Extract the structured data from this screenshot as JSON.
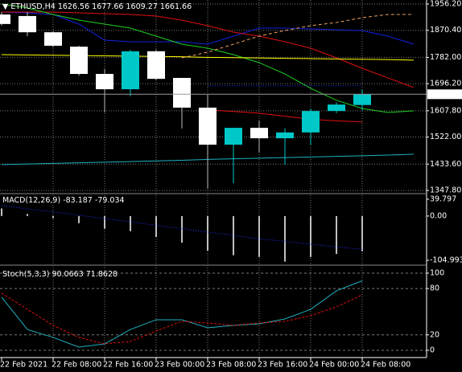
{
  "chart_data": {
    "type": "candlestick",
    "symbol": "ETHUSD,H4",
    "categories": [
      "22 Feb 2021",
      null,
      "22 Feb 08:00",
      null,
      "22 Feb 16:00",
      null,
      "23 Feb 00:00",
      null,
      "23 Feb 08:00",
      null,
      "23 Feb 16:00",
      null,
      "24 Feb 00:00",
      null,
      "24 Feb 08:00",
      null,
      null
    ],
    "open": [
      1922,
      1917,
      1864,
      1817,
      1728,
      1678,
      1802,
      1715,
      1618,
      1497,
      1552,
      1518,
      1537,
      1607,
      1626.56,
      null,
      null
    ],
    "high": [
      1930,
      1930,
      1868,
      1820,
      1744,
      1807,
      1807,
      1715,
      1660,
      1552,
      1576,
      1550,
      1615,
      1635,
      1677.66,
      null,
      null
    ],
    "low": [
      1886,
      1851,
      1815,
      1722,
      1602,
      1655,
      1707,
      1550,
      1353,
      1371,
      1471,
      1432,
      1497,
      1600,
      1609.27,
      null,
      null
    ],
    "close": [
      1891,
      1864,
      1820,
      1728,
      1678,
      1802,
      1712,
      1618,
      1497,
      1552,
      1518,
      1537,
      1607,
      1628,
      1661.66,
      null,
      null
    ],
    "up_color": "#00c8c8",
    "down_color": "#ffffff",
    "ylim": [
      1339.9,
      1969.3
    ],
    "yticks": [
      {
        "value": 1956.2,
        "label": "1956.20"
      },
      {
        "value": 1870.4,
        "label": "1870.40"
      },
      {
        "value": 1782,
        "label": "1782.00"
      },
      {
        "value": 1696.2,
        "label": "1696.20"
      },
      {
        "value": 1607.8,
        "label": "1607.80"
      },
      {
        "value": 1522,
        "label": "1522.00"
      },
      {
        "value": 1433.6,
        "label": "1433.60"
      },
      {
        "value": 1347.8,
        "label": "1347.80"
      }
    ],
    "grid": true,
    "overlays": [
      {
        "color": "#1020e0",
        "style": "solid",
        "values": [
          1930,
          1927.4,
          1922.1,
          1890.6,
          1838.2,
          1833,
          1833,
          1833,
          1825.1,
          1851.3,
          1877.5,
          1877.5,
          1874.9,
          1872.3,
          1869.7,
          1851.3,
          1825.1
        ]
      },
      {
        "color": "#e01010",
        "style": "solid",
        "values": [
          1930,
          1930,
          1930,
          1927.4,
          1924.7,
          1922.1,
          1916.9,
          1903.8,
          1885.4,
          1864.4,
          1851.3,
          1833,
          1812,
          1780.5,
          1746.4,
          1715,
          1684
        ]
      },
      {
        "color": "#20d020",
        "style": "solid",
        "values": [
          1956.2,
          1943.1,
          1922.1,
          1903.8,
          1890.6,
          1877.5,
          1851.3,
          1825.1,
          1812,
          1791,
          1764.8,
          1728,
          1681,
          1642,
          1615.3,
          1602.2,
          1607.4
        ]
      },
      {
        "color": "#ffff00",
        "style": "solid",
        "values": [
          1791,
          1790,
          1789,
          1788,
          1787,
          1786,
          1785,
          1784,
          1782,
          1781,
          1780,
          1779,
          1778,
          1777,
          1776,
          1775,
          1773
        ]
      },
      {
        "color": "#20b0c0",
        "style": "solid",
        "values": [
          1432,
          1434,
          1436,
          1438,
          1440,
          1442,
          1444,
          1446,
          1449,
          1451,
          1453,
          1455,
          1457,
          1459,
          1461,
          1463,
          1466
        ]
      },
      {
        "color": "#2030ff",
        "style": "dot",
        "values": [
          null,
          null,
          null,
          null,
          null,
          null,
          null,
          null,
          1689.2,
          1689.2,
          1689.2,
          1689.2,
          1689.2,
          1689.2,
          1689.2,
          null,
          null
        ]
      },
      {
        "color": "#e01010",
        "style": "solid",
        "values": [
          null,
          null,
          null,
          null,
          null,
          null,
          null,
          null,
          1610.5,
          1605.3,
          1600,
          1590,
          1580,
          1575,
          1571.2,
          null,
          null
        ]
      },
      {
        "color": "#f0a060",
        "style": "dash",
        "values": [
          null,
          null,
          null,
          null,
          null,
          null,
          null,
          1780.5,
          1798.9,
          1825.1,
          1851.3,
          1869.7,
          1885.4,
          1895.9,
          1911.6,
          1922.1,
          1922.1
        ]
      }
    ],
    "macd": {
      "name": "MACD(12,26,9)",
      "histogram": [
        18,
        5,
        -5,
        -17,
        -30,
        -36,
        -50,
        -63,
        -82,
        -93,
        -97,
        -108,
        -97,
        -90,
        -83.187,
        null,
        null
      ],
      "signal": [
        25,
        17,
        10,
        2,
        -6,
        -14,
        -22,
        -30,
        -38,
        -46,
        -54,
        -60,
        -67,
        -73,
        -79.034,
        null,
        null
      ],
      "hist_color": "#c0c0c0",
      "signal_color": "#2030ff",
      "ylim": [
        -112.6,
        51.2
      ],
      "yticks": [
        39.797,
        {
          "value": 0,
          "label": "0.00"
        },
        -104.993
      ]
    },
    "stoch": {
      "name": "Stoch(5,3,3)",
      "main": [
        68.8,
        27,
        16.7,
        4.2,
        8.3,
        27,
        39.6,
        39.6,
        29.2,
        32.3,
        34.4,
        40.6,
        53.1,
        77.1,
        90.0663,
        null,
        null
      ],
      "signal": [
        74,
        53.1,
        32.3,
        16.7,
        8.3,
        11.5,
        25,
        37.5,
        35.4,
        32.3,
        35.4,
        37.5,
        44.8,
        56.3,
        71.8628,
        null,
        null
      ],
      "main_color": "#20b0c0",
      "signal_color": "#e01010",
      "ylim": [
        -9.4,
        108.3
      ],
      "yticks": [
        100,
        80,
        20,
        0
      ]
    }
  }
}
